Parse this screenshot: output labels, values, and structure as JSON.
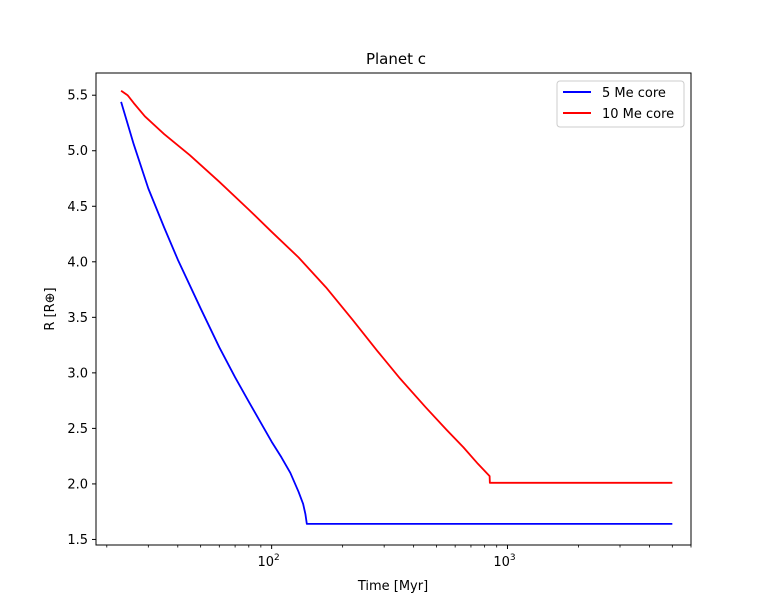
{
  "chart_data": {
    "type": "line",
    "title": "Planet c",
    "xlabel": "Time [Myr]",
    "ylabel": "R [R⊕]",
    "xscale": "log",
    "xlim": [
      18,
      6000
    ],
    "ylim": [
      1.45,
      5.7
    ],
    "yticks": [
      1.5,
      2.0,
      2.5,
      3.0,
      3.5,
      4.0,
      4.5,
      5.0,
      5.5
    ],
    "ytick_labels": [
      "1.5",
      "2.0",
      "2.5",
      "3.0",
      "3.5",
      "4.0",
      "4.5",
      "5.0",
      "5.5"
    ],
    "xticks": [
      100,
      1000
    ],
    "xtick_labels": [
      {
        "base": "10",
        "exp": "2"
      },
      {
        "base": "10",
        "exp": "3"
      }
    ],
    "grid": false,
    "legend_position": "top-right",
    "series": [
      {
        "name": "5 Me core",
        "color": "#0000ff",
        "points": [
          [
            23,
            5.44
          ],
          [
            26,
            5.06
          ],
          [
            30,
            4.66
          ],
          [
            35,
            4.31
          ],
          [
            40,
            4.02
          ],
          [
            50,
            3.58
          ],
          [
            60,
            3.23
          ],
          [
            70,
            2.96
          ],
          [
            80,
            2.74
          ],
          [
            90,
            2.55
          ],
          [
            100,
            2.38
          ],
          [
            110,
            2.24
          ],
          [
            120,
            2.1
          ],
          [
            130,
            1.93
          ],
          [
            136,
            1.82
          ],
          [
            139,
            1.73
          ],
          [
            141,
            1.64
          ],
          [
            160,
            1.64
          ],
          [
            300,
            1.64
          ],
          [
            1000,
            1.64
          ],
          [
            3000,
            1.64
          ],
          [
            5000,
            1.64
          ]
        ]
      },
      {
        "name": "10 Me core",
        "color": "#ff0000",
        "points": [
          [
            23,
            5.54
          ],
          [
            24.5,
            5.5
          ],
          [
            26,
            5.43
          ],
          [
            29,
            5.31
          ],
          [
            35,
            5.15
          ],
          [
            45,
            4.96
          ],
          [
            60,
            4.72
          ],
          [
            80,
            4.47
          ],
          [
            100,
            4.27
          ],
          [
            130,
            4.04
          ],
          [
            170,
            3.77
          ],
          [
            220,
            3.48
          ],
          [
            280,
            3.2
          ],
          [
            350,
            2.95
          ],
          [
            450,
            2.69
          ],
          [
            550,
            2.49
          ],
          [
            650,
            2.33
          ],
          [
            750,
            2.18
          ],
          [
            840,
            2.07
          ],
          [
            842,
            2.01
          ],
          [
            900,
            2.01
          ],
          [
            2000,
            2.01
          ],
          [
            5000,
            2.01
          ]
        ]
      }
    ]
  }
}
